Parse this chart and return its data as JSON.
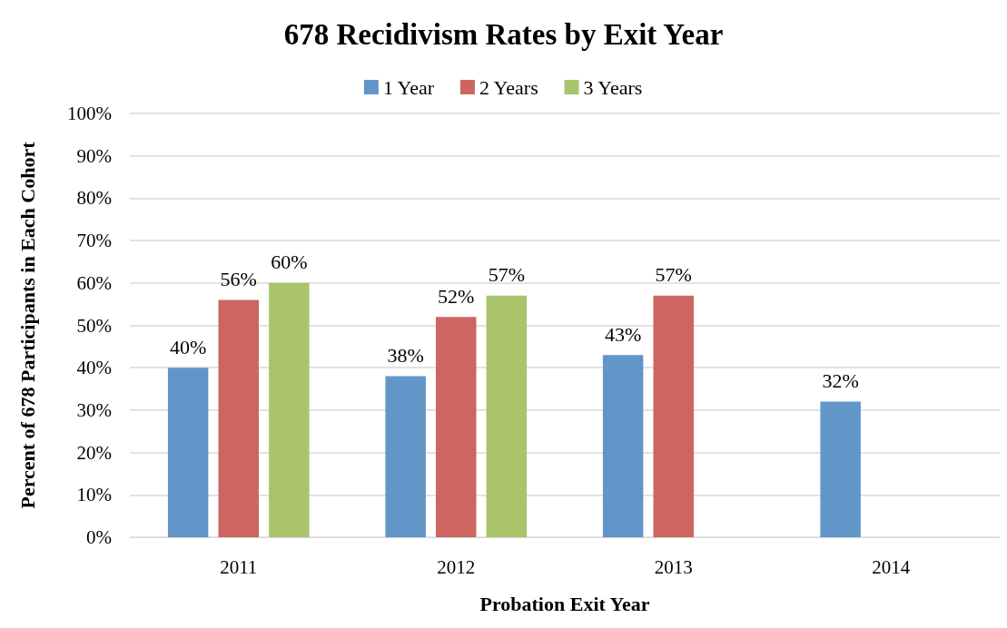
{
  "chart_data": {
    "type": "bar",
    "title": "678 Recidivism Rates by Exit Year",
    "xlabel": "Probation Exit Year",
    "ylabel": "Percent of 678 Participants in Each Cohort",
    "categories": [
      "2011",
      "2012",
      "2013",
      "2014"
    ],
    "series": [
      {
        "name": "1 Year",
        "color": "#6296c9",
        "values": [
          40,
          38,
          43,
          32
        ],
        "value_labels": [
          "40%",
          "38%",
          "43%",
          "32%"
        ]
      },
      {
        "name": "2 Years",
        "color": "#cd6561",
        "values": [
          56,
          52,
          57,
          null
        ],
        "value_labels": [
          "56%",
          "52%",
          "57%",
          null
        ]
      },
      {
        "name": "3 Years",
        "color": "#a9c46b",
        "values": [
          60,
          57,
          null,
          null
        ],
        "value_labels": [
          "60%",
          "57%",
          null,
          null
        ]
      }
    ],
    "ylim": [
      0,
      100
    ],
    "yticks": [
      {
        "value": 0,
        "label": "0%"
      },
      {
        "value": 10,
        "label": "10%"
      },
      {
        "value": 20,
        "label": "20%"
      },
      {
        "value": 30,
        "label": "30%"
      },
      {
        "value": 40,
        "label": "40%"
      },
      {
        "value": 50,
        "label": "50%"
      },
      {
        "value": 60,
        "label": "60%"
      },
      {
        "value": 70,
        "label": "70%"
      },
      {
        "value": 80,
        "label": "80%"
      },
      {
        "value": 90,
        "label": "90%"
      },
      {
        "value": 100,
        "label": "100%"
      }
    ],
    "grid": "y",
    "legend": "top"
  }
}
